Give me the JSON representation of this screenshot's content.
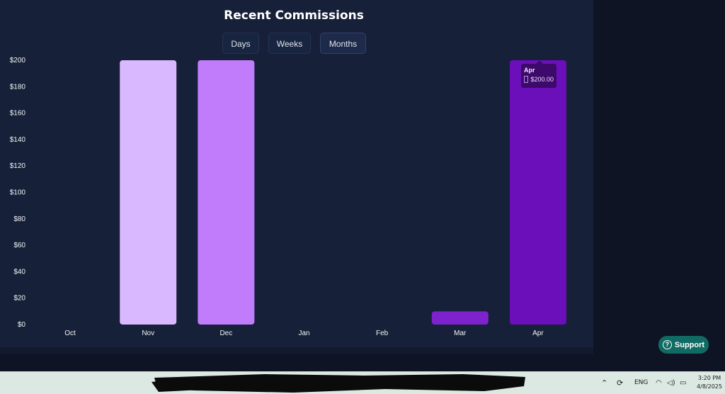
{
  "title": "Recent Commissions",
  "range_buttons": {
    "days": "Days",
    "weeks": "Weeks",
    "months": "Months",
    "active": "Months"
  },
  "chart_data": {
    "type": "bar",
    "title": "Recent Commissions",
    "categories": [
      "Oct",
      "Nov",
      "Dec",
      "Jan",
      "Feb",
      "Mar",
      "Apr"
    ],
    "values": [
      0,
      200,
      200,
      0,
      0,
      10,
      200
    ],
    "bar_colors": [
      "#d9b8ff",
      "#d9b8ff",
      "#c07cfb",
      "#a855f7",
      "#9333ea",
      "#7e22ce",
      "#6b0fba"
    ],
    "ylim": [
      0,
      200
    ],
    "y_ticks": [
      "$0",
      "$20",
      "$40",
      "$60",
      "$80",
      "$100",
      "$120",
      "$140",
      "$160",
      "$180",
      "$200"
    ],
    "y_tick_values": [
      0,
      20,
      40,
      60,
      80,
      100,
      120,
      140,
      160,
      180,
      200
    ],
    "grid": false,
    "xlabel": "",
    "ylabel": ""
  },
  "tooltip": {
    "title": "Apr",
    "value": "$200.00"
  },
  "support": {
    "label": "Support",
    "icon": "question-circle-icon"
  },
  "taskbar": {
    "language": "ENG",
    "time": "3:20 PM",
    "date": "4/8/2025"
  }
}
